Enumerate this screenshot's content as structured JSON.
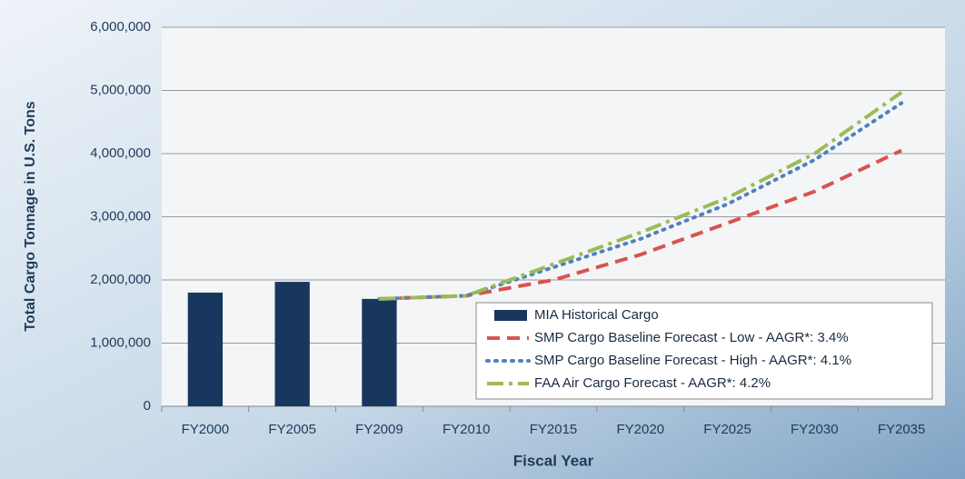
{
  "chart_data": {
    "type": "bar_line",
    "x_label": "Fiscal Year",
    "y_label": "Total Cargo Tonnage in U.S. Tons",
    "categories": [
      "FY2000",
      "FY2005",
      "FY2009",
      "FY2010",
      "FY2015",
      "FY2020",
      "FY2025",
      "FY2030",
      "FY2035"
    ],
    "ylim": [
      0,
      6000000
    ],
    "yticks": [
      0,
      {
        "value": 1000000,
        "label": "1,000,000"
      },
      {
        "value": 2000000,
        "label": "2,000,000"
      },
      {
        "value": 3000000,
        "label": "3,000,000"
      },
      {
        "value": 4000000,
        "label": "4,000,000"
      },
      {
        "value": 5000000,
        "label": "5,000,000"
      },
      {
        "value": 6000000,
        "label": "6,000,000"
      }
    ],
    "grid": true,
    "legend": "lower right",
    "series": [
      {
        "name": "MIA Historical Cargo",
        "kind": "bar",
        "color": "#17375e",
        "values": [
          1800000,
          1970000,
          1700000,
          null,
          null,
          null,
          null,
          null,
          null
        ]
      },
      {
        "name": "SMP Cargo Baseline Forecast - Low - AAGR*: 3.4%",
        "kind": "line",
        "dash": "dashed",
        "color": "#d9534f",
        "values": [
          null,
          null,
          1700000,
          1750000,
          2000000,
          2400000,
          2900000,
          3400000,
          4050000
        ]
      },
      {
        "name": "SMP Cargo Baseline Forecast - High - AAGR*: 4.1%",
        "kind": "line",
        "dash": "dotted",
        "color": "#4f81bd",
        "values": [
          null,
          null,
          1700000,
          1750000,
          2200000,
          2650000,
          3200000,
          3900000,
          4800000
        ]
      },
      {
        "name": "FAA Air Cargo Forecast - AAGR*: 4.2%",
        "kind": "line",
        "dash": "dashdot",
        "color": "#9bbb59",
        "values": [
          null,
          null,
          1700000,
          1750000,
          2250000,
          2750000,
          3300000,
          4000000,
          4970000
        ]
      }
    ]
  }
}
